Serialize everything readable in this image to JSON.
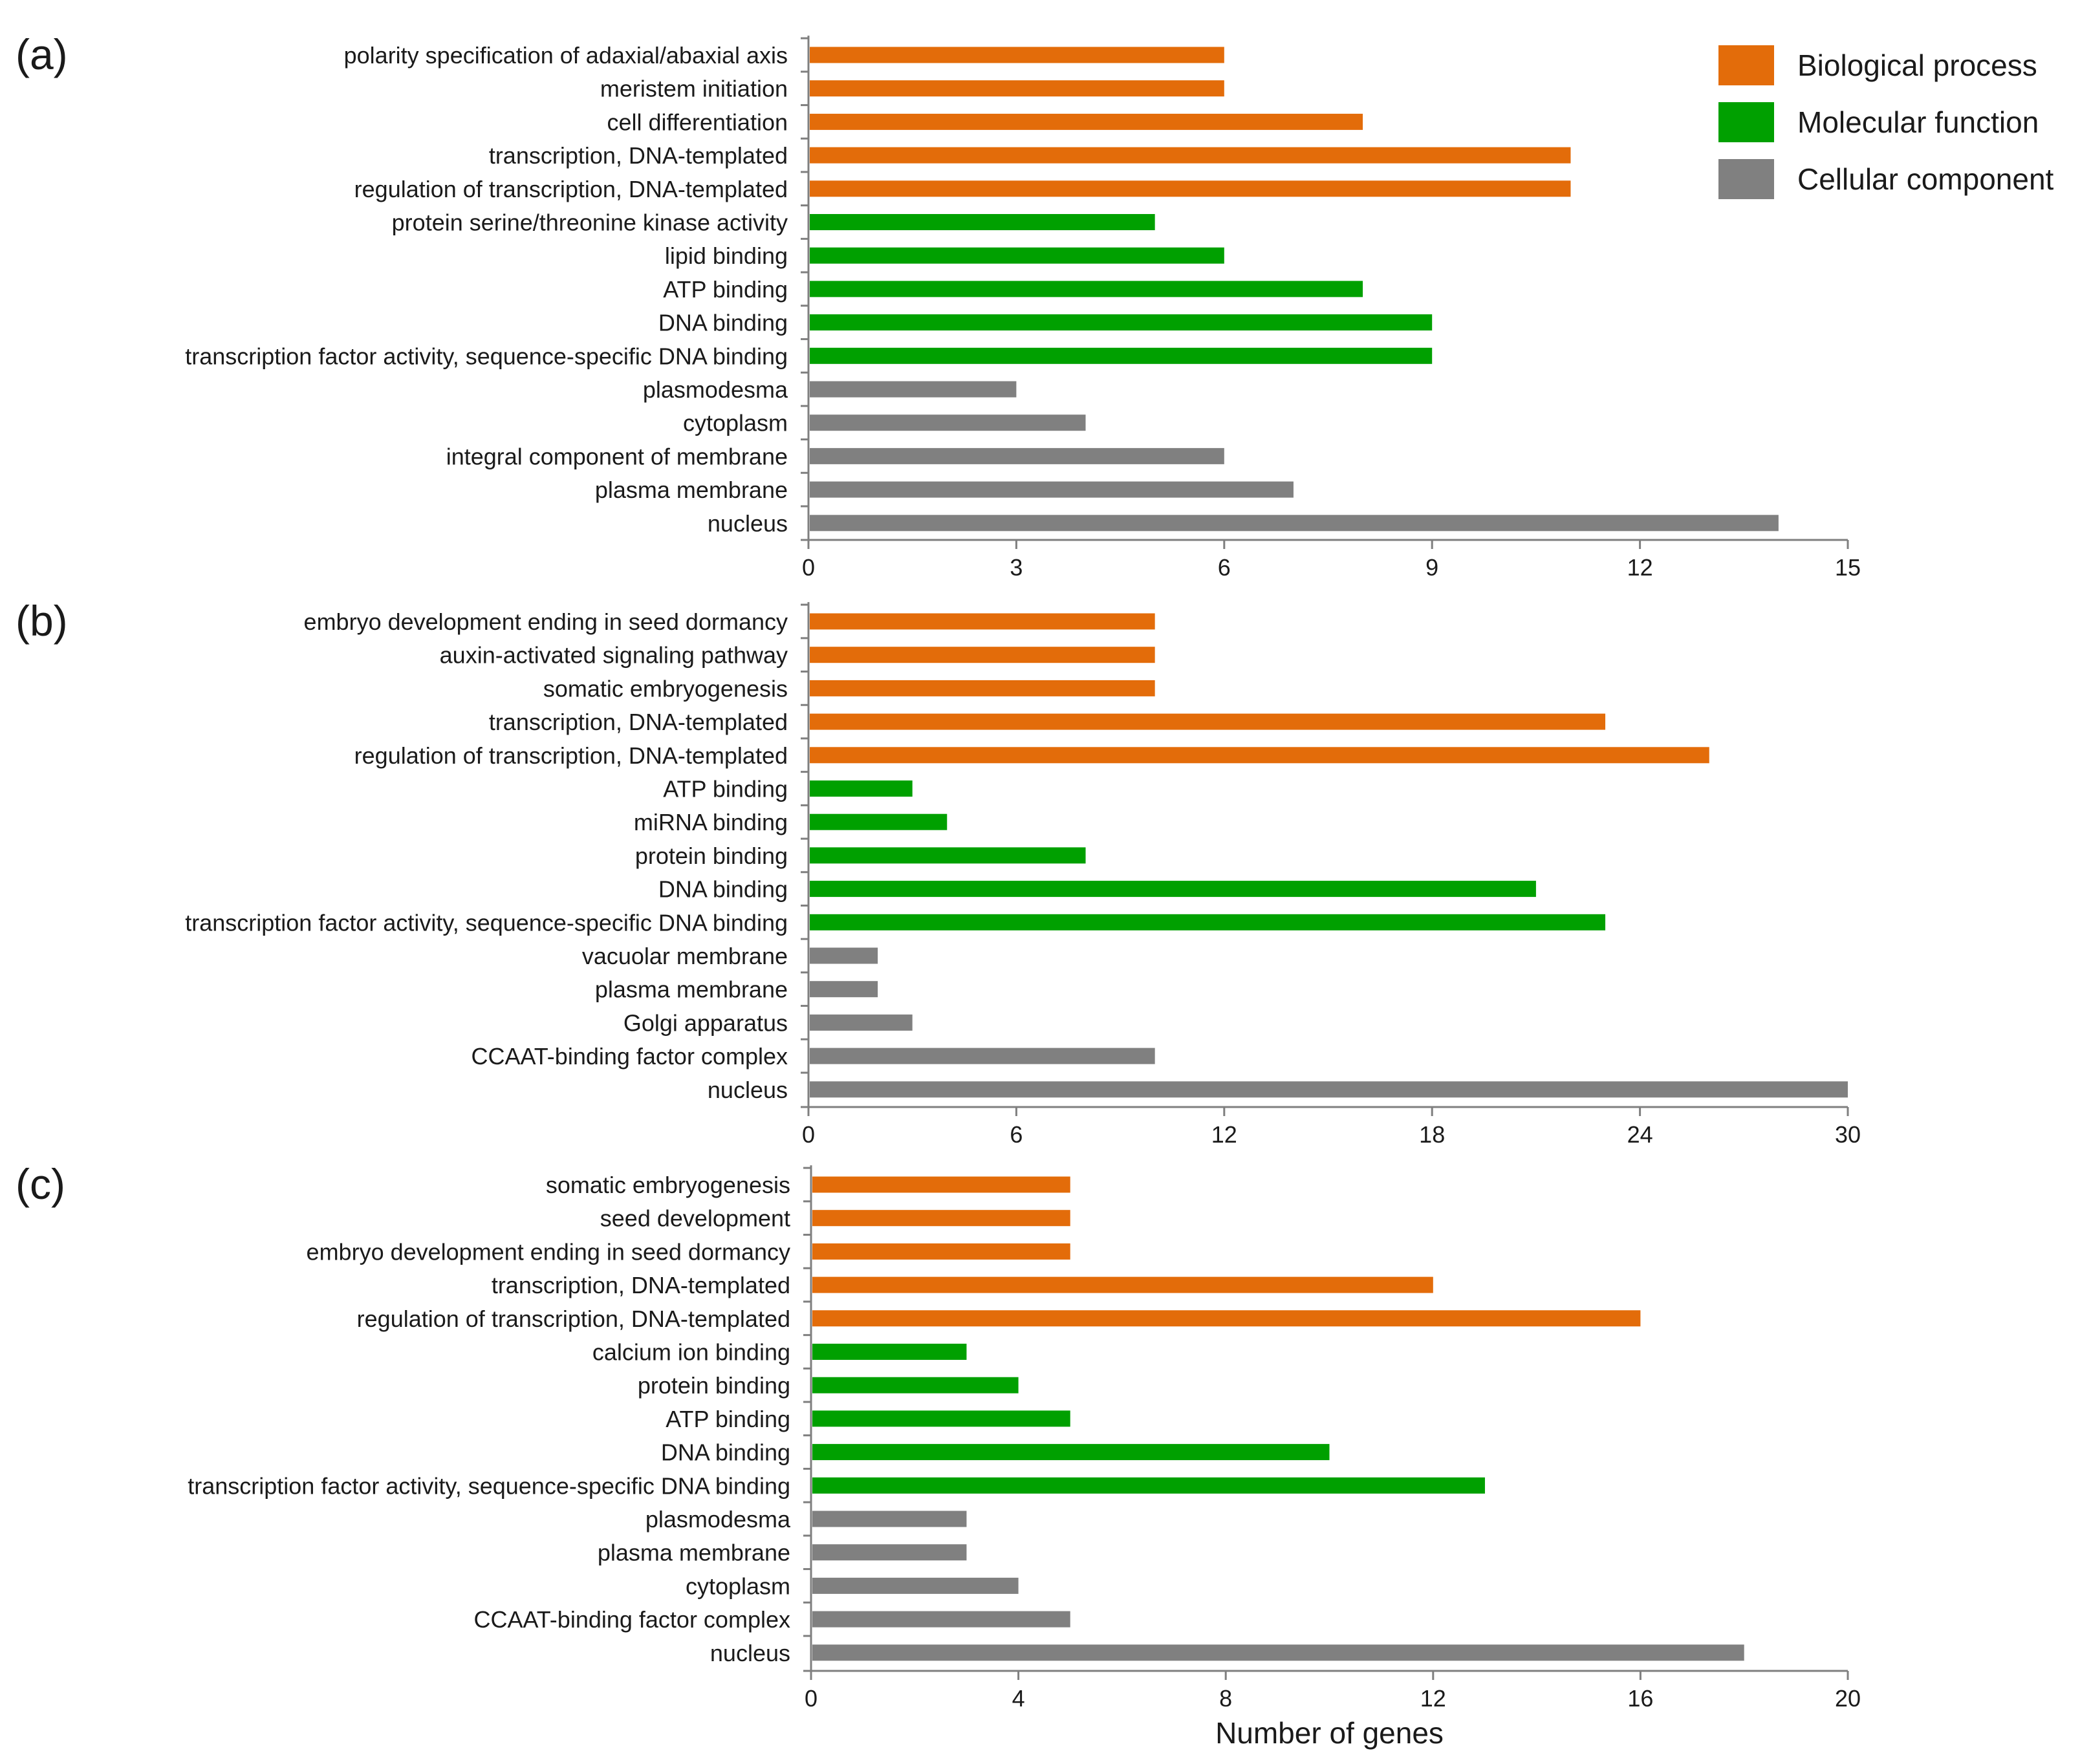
{
  "legend": [
    {
      "label": "Biological process",
      "color": "#e36c0a"
    },
    {
      "label": "Molecular function",
      "color": "#00a000"
    },
    {
      "label": "Cellular component",
      "color": "#808080"
    }
  ],
  "chart_data": [
    {
      "type": "bar",
      "orientation": "horizontal",
      "panel_label": "(a)",
      "xlim": [
        0,
        15
      ],
      "ticks": [
        0,
        3,
        6,
        9,
        12,
        15
      ],
      "xlabel": "",
      "categories": [
        "polarity specification of adaxial/abaxial axis",
        "meristem initiation",
        "cell differentiation",
        "transcription, DNA-templated",
        "regulation of transcription, DNA-templated",
        "protein serine/threonine kinase activity",
        "lipid binding",
        "ATP binding",
        "DNA binding",
        "transcription factor activity, sequence-specific DNA binding",
        "plasmodesma",
        "cytoplasm",
        "integral component of membrane",
        "plasma membrane",
        "nucleus"
      ],
      "values": [
        6,
        6,
        8,
        11,
        11,
        5,
        6,
        8,
        9,
        9,
        3,
        4,
        6,
        7,
        14
      ],
      "groups": [
        "Biological process",
        "Biological process",
        "Biological process",
        "Biological process",
        "Biological process",
        "Molecular function",
        "Molecular function",
        "Molecular function",
        "Molecular function",
        "Molecular function",
        "Cellular component",
        "Cellular component",
        "Cellular component",
        "Cellular component",
        "Cellular component"
      ]
    },
    {
      "type": "bar",
      "orientation": "horizontal",
      "panel_label": "(b)",
      "xlim": [
        0,
        30
      ],
      "ticks": [
        0,
        6,
        12,
        18,
        24,
        30
      ],
      "xlabel": "",
      "categories": [
        "embryo development ending in seed dormancy",
        "auxin-activated signaling pathway",
        "somatic embryogenesis",
        "transcription, DNA-templated",
        "regulation of transcription, DNA-templated",
        "ATP binding",
        "miRNA binding",
        "protein binding",
        "DNA binding",
        "transcription factor activity, sequence-specific DNA binding",
        "vacuolar membrane",
        "plasma membrane",
        "Golgi apparatus",
        "CCAAT-binding factor complex",
        "nucleus"
      ],
      "values": [
        10,
        10,
        10,
        23,
        26,
        3,
        4,
        8,
        21,
        23,
        2,
        2,
        3,
        10,
        30
      ],
      "groups": [
        "Biological process",
        "Biological process",
        "Biological process",
        "Biological process",
        "Biological process",
        "Molecular function",
        "Molecular function",
        "Molecular function",
        "Molecular function",
        "Molecular function",
        "Cellular component",
        "Cellular component",
        "Cellular component",
        "Cellular component",
        "Cellular component"
      ]
    },
    {
      "type": "bar",
      "orientation": "horizontal",
      "panel_label": "(c)",
      "xlim": [
        0,
        20
      ],
      "ticks": [
        0,
        4,
        8,
        12,
        16,
        20
      ],
      "xlabel": "Number of genes",
      "categories": [
        "somatic embryogenesis",
        "seed development",
        "embryo development ending in seed dormancy",
        "transcription, DNA-templated",
        "regulation of transcription, DNA-templated",
        "calcium ion binding",
        "protein binding",
        "ATP binding",
        "DNA binding",
        "transcription factor activity, sequence-specific DNA binding",
        "plasmodesma",
        "plasma membrane",
        "cytoplasm",
        "CCAAT-binding factor complex",
        "nucleus"
      ],
      "values": [
        5,
        5,
        5,
        12,
        16,
        3,
        4,
        5,
        10,
        13,
        3,
        3,
        4,
        5,
        18
      ],
      "groups": [
        "Biological process",
        "Biological process",
        "Biological process",
        "Biological process",
        "Biological process",
        "Molecular function",
        "Molecular function",
        "Molecular function",
        "Molecular function",
        "Molecular function",
        "Cellular component",
        "Cellular component",
        "Cellular component",
        "Cellular component",
        "Cellular component"
      ]
    }
  ]
}
